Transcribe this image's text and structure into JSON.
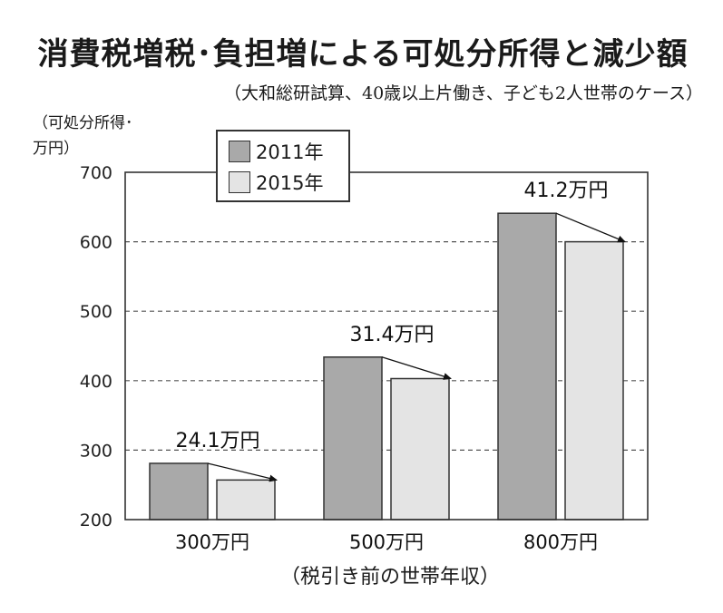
{
  "chart_data": {
    "type": "bar",
    "title": "消費税増税･負担増による可処分所得と減少額",
    "subtitle": "（大和総研試算、40歳以上片働き、子ども2人世帯のケース）",
    "ylabel_line1": "（可処分所得･",
    "ylabel_line2": "万円）",
    "xlabel": "（税引き前の世帯年収）",
    "categories": [
      "300万円",
      "500万円",
      "800万円"
    ],
    "series": [
      {
        "name": "2011年",
        "values": [
          281,
          434,
          641
        ],
        "color": "#a9a9a9"
      },
      {
        "name": "2015年",
        "values": [
          257,
          403,
          600
        ],
        "color": "#e4e4e4"
      }
    ],
    "annotations": [
      "24.1万円",
      "31.4万円",
      "41.2万円"
    ],
    "ylim": [
      200,
      700
    ],
    "yticks": [
      200,
      300,
      400,
      500,
      600,
      700
    ],
    "grid": true,
    "legend_position": "top-left"
  }
}
